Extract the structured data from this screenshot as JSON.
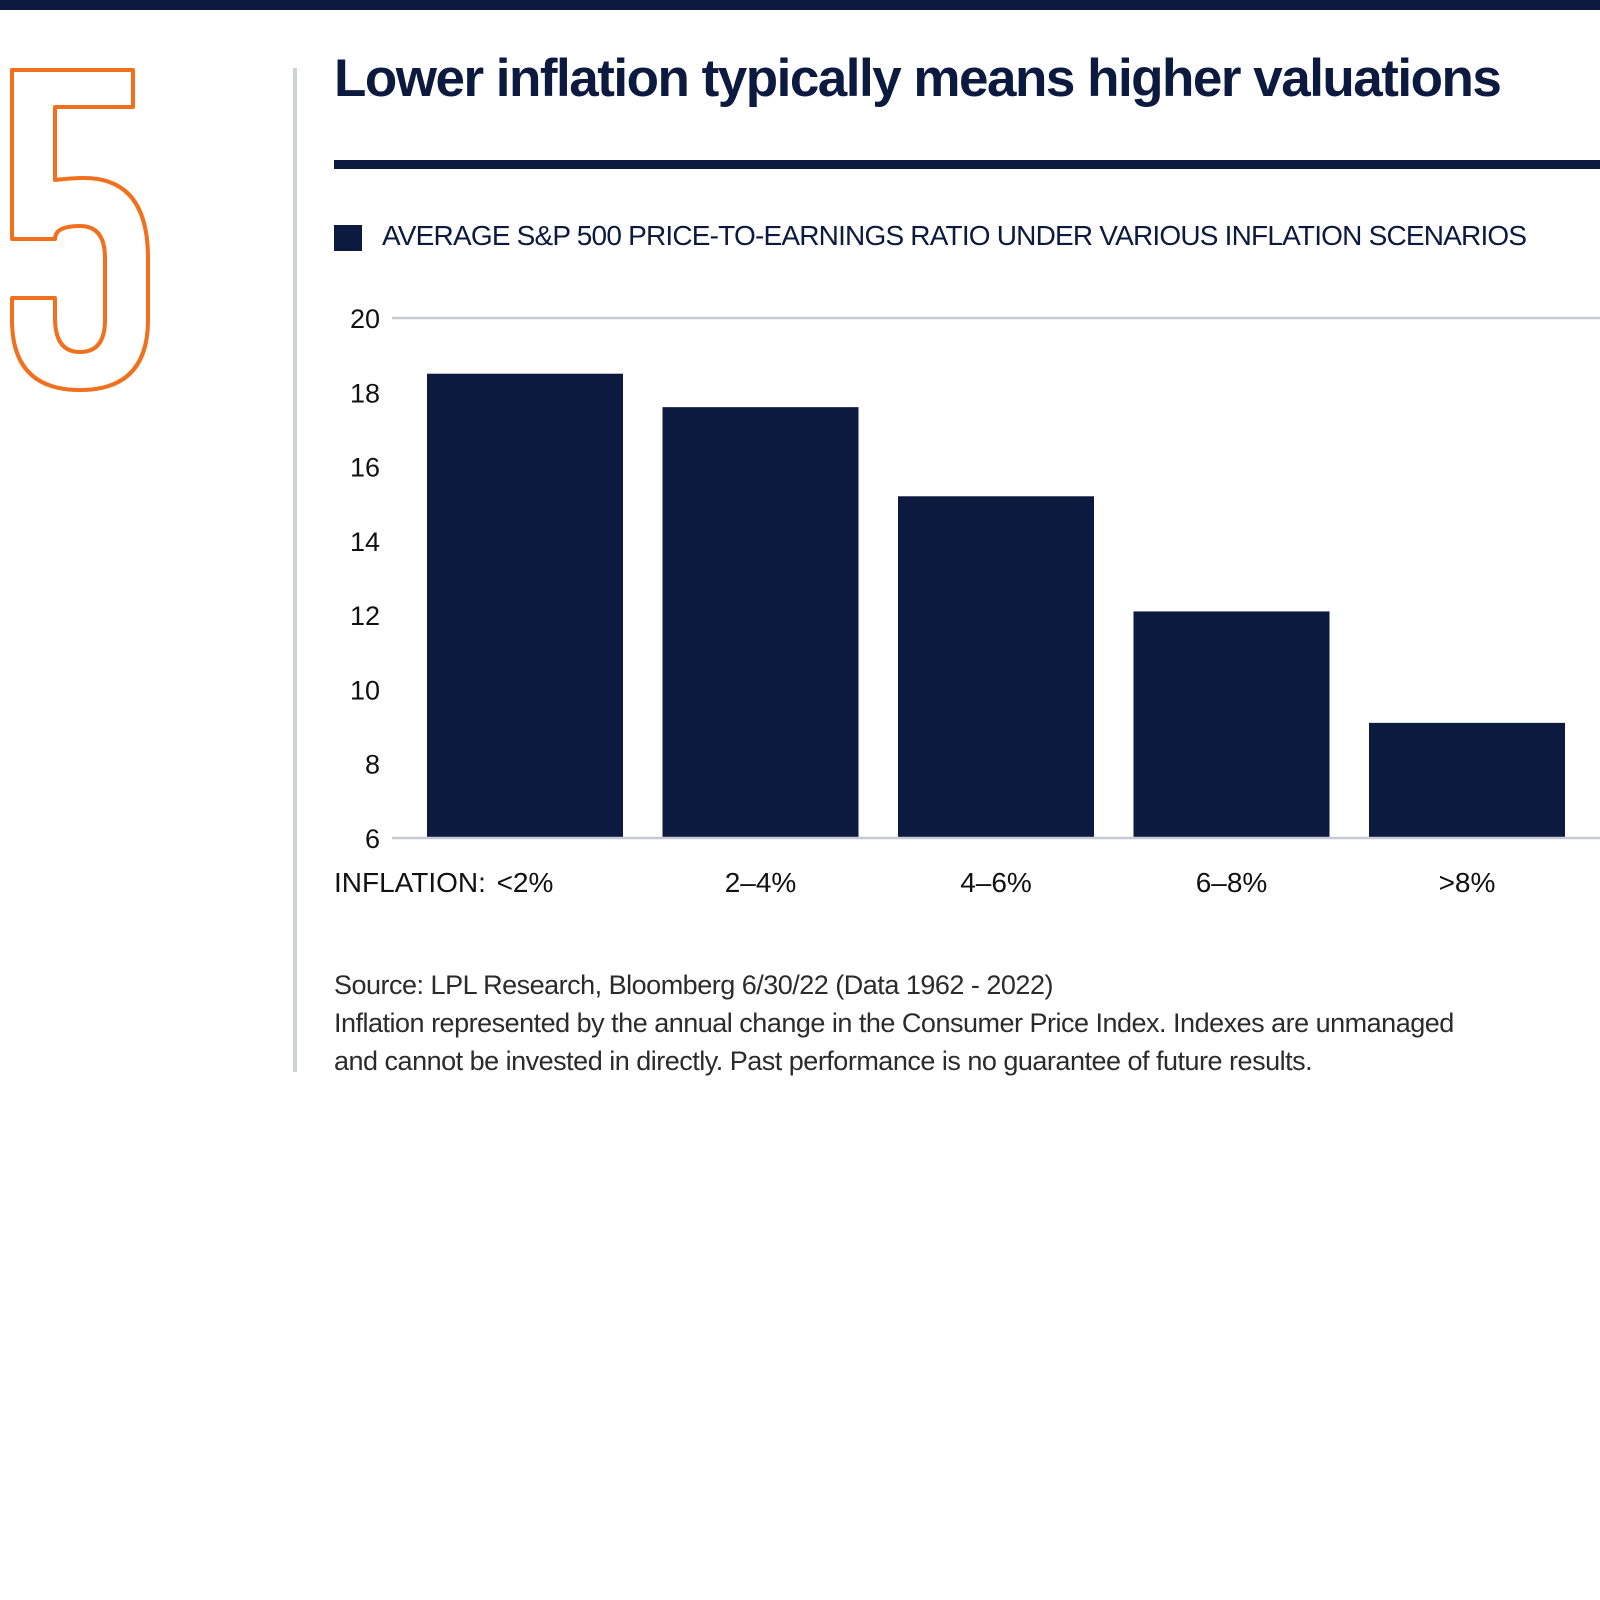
{
  "section_number": "5",
  "title": "Lower inflation typically means higher valuations",
  "colors": {
    "navy": "#0c1a3f",
    "orange": "#f0701e",
    "gridline": "#c7c8d6",
    "divider": "#cfd0d9"
  },
  "chart_data": {
    "type": "bar",
    "legend_label": "AVERAGE S&P 500 PRICE-TO-EARNINGS RATIO UNDER VARIOUS INFLATION SCENARIOS",
    "xlabel": "INFLATION:",
    "categories": [
      "<2%",
      "2–4%",
      "4–6%",
      "6–8%",
      ">8%"
    ],
    "series": [
      {
        "name": "AVERAGE S&P 500 PRICE-TO-EARNINGS RATIO UNDER VARIOUS INFLATION SCENARIOS",
        "values": [
          18.5,
          17.6,
          15.2,
          12.1,
          9.1
        ]
      }
    ],
    "ylim": [
      6,
      20
    ],
    "yticks": [
      20,
      18,
      16,
      14,
      12,
      10,
      8,
      6
    ],
    "grid": "top line only",
    "legend_position": "top-left",
    "bar_color": "#0c1a3f"
  },
  "source_lines": [
    "Source: LPL Research, Bloomberg 6/30/22 (Data 1962 - 2022)",
    "Inflation represented by the annual change in the Consumer Price Index. Indexes are unmanaged",
    "and cannot be invested in directly. Past performance is no guarantee of future results."
  ]
}
